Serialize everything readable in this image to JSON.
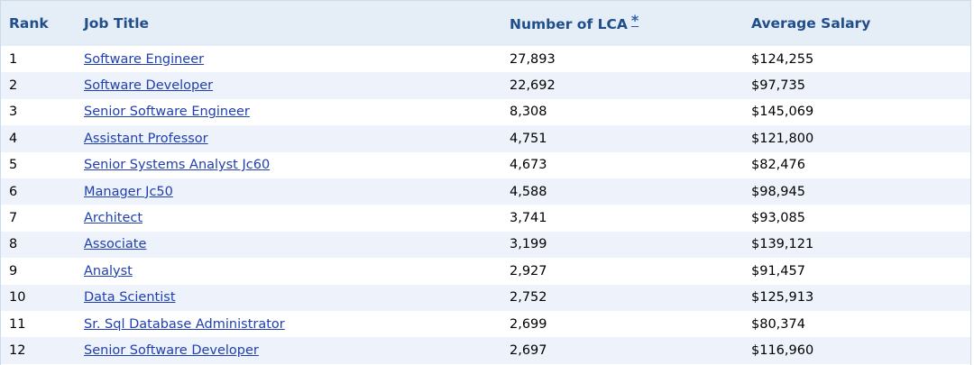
{
  "header": {
    "rank": "Rank",
    "job_title": "Job Title",
    "lca": "Number of LCA",
    "lca_note": "*",
    "salary": "Average Salary"
  },
  "rows": [
    {
      "rank": "1",
      "title": "Software Engineer",
      "lca": "27,893",
      "salary": "$124,255"
    },
    {
      "rank": "2",
      "title": "Software Developer",
      "lca": "22,692",
      "salary": "$97,735"
    },
    {
      "rank": "3",
      "title": "Senior Software Engineer",
      "lca": "8,308",
      "salary": "$145,069"
    },
    {
      "rank": "4",
      "title": "Assistant Professor",
      "lca": "4,751",
      "salary": "$121,800"
    },
    {
      "rank": "5",
      "title": "Senior Systems Analyst Jc60",
      "lca": "4,673",
      "salary": "$82,476"
    },
    {
      "rank": "6",
      "title": "Manager Jc50",
      "lca": "4,588",
      "salary": "$98,945"
    },
    {
      "rank": "7",
      "title": "Architect",
      "lca": "3,741",
      "salary": "$93,085"
    },
    {
      "rank": "8",
      "title": "Associate",
      "lca": "3,199",
      "salary": "$139,121"
    },
    {
      "rank": "9",
      "title": "Analyst",
      "lca": "2,927",
      "salary": "$91,457"
    },
    {
      "rank": "10",
      "title": "Data Scientist",
      "lca": "2,752",
      "salary": "$125,913"
    },
    {
      "rank": "11",
      "title": "Sr. Sql Database Administrator",
      "lca": "2,699",
      "salary": "$80,374"
    },
    {
      "rank": "12",
      "title": "Senior Software Developer",
      "lca": "2,697",
      "salary": "$116,960"
    }
  ],
  "colors": {
    "header_bg": "#e5eef7",
    "header_text": "#1f4e8a",
    "alt_row_bg": "#eef2fb",
    "link": "#2040b0"
  }
}
